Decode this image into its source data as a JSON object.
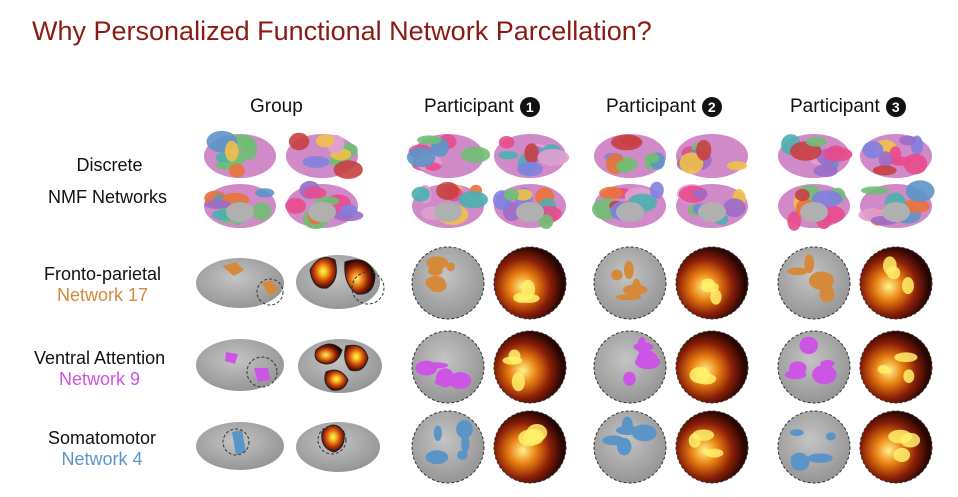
{
  "title": "Why Personalized Functional Network Parcellation?",
  "columns": {
    "group": "Group",
    "p1": {
      "label": "Participant",
      "num": "1"
    },
    "p2": {
      "label": "Participant",
      "num": "2"
    },
    "p3": {
      "label": "Participant",
      "num": "3"
    }
  },
  "rows": {
    "discrete": {
      "line1": "Discrete",
      "line2": "NMF Networks"
    },
    "fp": {
      "line1": "Fronto-parietal",
      "line2": "Network 17"
    },
    "va": {
      "line1": "Ventral Attention",
      "line2": "Network 9"
    },
    "sm": {
      "line1": "Somatomotor",
      "line2": "Network 4"
    }
  },
  "colors": {
    "title": "#8b1a14",
    "fronto_parietal": "#d58a3a",
    "ventral_attention": "#cc55e6",
    "somatomotor": "#5b95c8",
    "brain_gray": "#a9a9a9"
  },
  "icons": [
    "cortical-surface-map",
    "zoom-circle",
    "heat-map"
  ]
}
